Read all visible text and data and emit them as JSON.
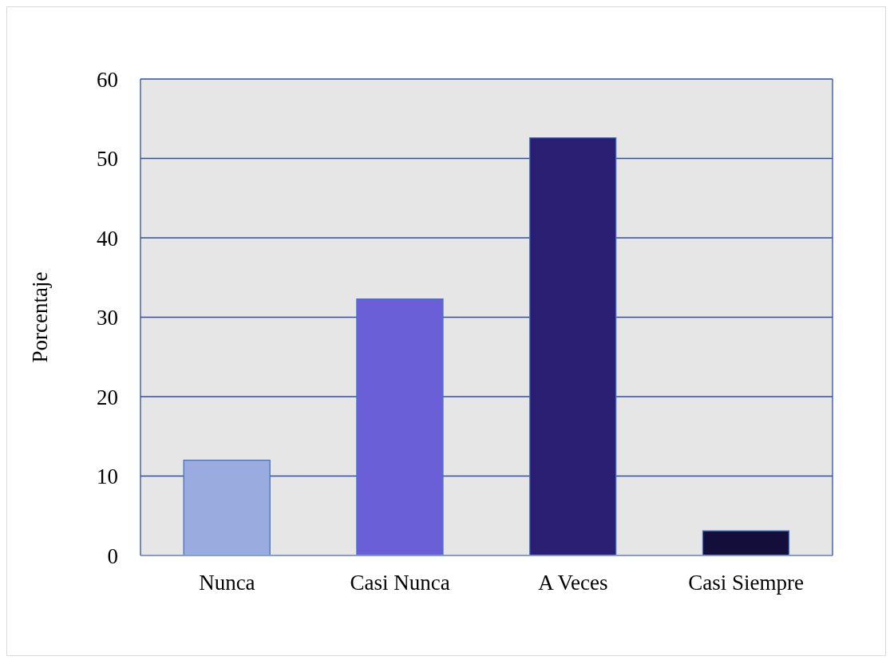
{
  "chart_data": {
    "type": "bar",
    "ylabel": "Porcentaje",
    "categories": [
      "Nunca",
      "Casi Nunca",
      "A Veces",
      "Casi Siempre"
    ],
    "values": [
      12,
      32.3,
      52.6,
      3.1
    ],
    "colors": [
      "#9aabdf",
      "#6b5fd8",
      "#2a1f73",
      "#140f3a"
    ],
    "ylim": [
      0,
      60
    ],
    "yticks": [
      0,
      10,
      20,
      30,
      40,
      50,
      60
    ],
    "grid": "y"
  }
}
